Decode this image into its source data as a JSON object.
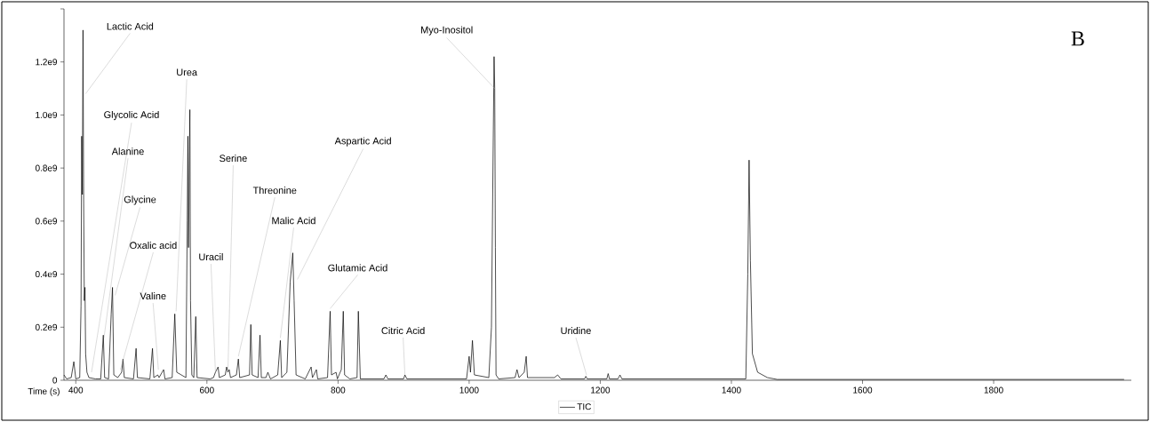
{
  "chart_data": {
    "type": "line",
    "xlabel": "Time (s)",
    "legend": "bottom",
    "xlim": [
      382,
      2010
    ],
    "ylim": [
      0,
      1400000000.0
    ],
    "xticks": [
      400,
      600,
      800,
      1000,
      1200,
      1400,
      1600,
      1800
    ],
    "yticks": [
      0,
      {
        "value": 200000000.0,
        "label": "0.2e9"
      },
      {
        "value": 400000000.0,
        "label": "0.4e9"
      },
      {
        "value": 600000000.0,
        "label": "0.6e9"
      },
      {
        "value": 800000000.0,
        "label": "0.8e9"
      },
      {
        "value": 1000000000.0,
        "label": "1.0e9"
      },
      {
        "value": 1200000000.0,
        "label": "1.2e9"
      },
      {
        "value": 1400000000.0,
        "label": null
      }
    ],
    "series": [
      {
        "name": "TIC",
        "color": "#000000",
        "x": [
          382,
          386,
          393,
          397,
          400,
          406,
          408,
          409,
          410,
          411,
          412,
          413,
          414,
          415,
          417,
          420,
          430,
          438,
          442,
          444,
          450,
          454,
          456,
          458,
          464,
          470,
          472,
          474,
          488,
          492,
          494,
          513,
          517,
          519,
          525,
          527,
          534,
          536,
          547,
          551,
          554,
          568,
          570,
          571,
          572,
          574,
          575,
          577,
          580,
          583,
          585,
          605,
          610,
          613,
          617,
          619,
          628,
          630,
          632,
          634,
          636,
          645,
          648,
          650,
          665,
          667,
          669,
          678,
          681,
          683,
          690,
          693,
          697,
          708,
          712,
          714,
          722,
          727,
          731,
          733,
          736,
          750,
          759,
          761,
          767,
          769,
          784,
          788,
          790,
          797,
          799,
          805,
          808,
          810,
          818,
          829,
          831,
          834,
          870,
          873,
          876,
          900,
          902,
          905,
          996,
          1000,
          1002,
          1005,
          1008,
          1030,
          1034,
          1036,
          1038,
          1039,
          1040,
          1041,
          1045,
          1070,
          1073,
          1076,
          1084,
          1087,
          1089,
          1130,
          1135,
          1140,
          1176,
          1178,
          1180,
          1210,
          1212,
          1214,
          1227,
          1230,
          1233,
          1422,
          1425,
          1427,
          1429,
          1432,
          1440,
          1455,
          1470,
          1999
        ],
        "values": [
          20000000.0,
          5000000.0,
          10000000.0,
          70000000.0,
          5000000.0,
          10000000.0,
          280000000.0,
          920000000.0,
          700000000.0,
          1320000000.0,
          680000000.0,
          300000000.0,
          350000000.0,
          100000000.0,
          30000000.0,
          10000000.0,
          5000000.0,
          5000000.0,
          170000000.0,
          10000000.0,
          5000000.0,
          250000000.0,
          350000000.0,
          20000000.0,
          10000000.0,
          30000000.0,
          80000000.0,
          10000000.0,
          5000000.0,
          120000000.0,
          10000000.0,
          5000000.0,
          120000000.0,
          10000000.0,
          20000000.0,
          10000000.0,
          40000000.0,
          5000000.0,
          10000000.0,
          250000000.0,
          30000000.0,
          10000000.0,
          600000000.0,
          920000000.0,
          500000000.0,
          1020000000.0,
          300000000.0,
          20000000.0,
          10000000.0,
          240000000.0,
          10000000.0,
          5000000.0,
          10000000.0,
          30000000.0,
          50000000.0,
          10000000.0,
          20000000.0,
          50000000.0,
          30000000.0,
          40000000.0,
          10000000.0,
          20000000.0,
          80000000.0,
          10000000.0,
          20000000.0,
          210000000.0,
          20000000.0,
          10000000.0,
          170000000.0,
          10000000.0,
          10000000.0,
          30000000.0,
          5000000.0,
          20000000.0,
          150000000.0,
          10000000.0,
          30000000.0,
          370000000.0,
          480000000.0,
          300000000.0,
          20000000.0,
          5000000.0,
          50000000.0,
          10000000.0,
          40000000.0,
          5000000.0,
          10000000.0,
          260000000.0,
          20000000.0,
          30000000.0,
          5000000.0,
          40000000.0,
          260000000.0,
          20000000.0,
          5000000.0,
          10000000.0,
          260000000.0,
          5000000.0,
          5000000.0,
          20000000.0,
          5000000.0,
          5000000.0,
          20000000.0,
          5000000.0,
          5000000.0,
          90000000.0,
          30000000.0,
          150000000.0,
          20000000.0,
          10000000.0,
          200000000.0,
          720000000.0,
          1220000000.0,
          1100000000.0,
          500000000.0,
          20000000.0,
          5000000.0,
          10000000.0,
          40000000.0,
          10000000.0,
          30000000.0,
          90000000.0,
          10000000.0,
          10000000.0,
          20000000.0,
          5000000.0,
          5000000.0,
          15000000.0,
          5000000.0,
          5000000.0,
          25000000.0,
          5000000.0,
          5000000.0,
          20000000.0,
          5000000.0,
          5000000.0,
          400000000.0,
          830000000.0,
          450000000.0,
          100000000.0,
          30000000.0,
          10000000.0,
          3000000.0,
          3000000.0
        ]
      }
    ],
    "annotations": [
      {
        "text": "Lactic Acid",
        "x": 415,
        "y": 1080000000.0
      },
      {
        "text": "Glycolic Acid",
        "x": 424,
        "y": 30000000.0
      },
      {
        "text": "Alanine",
        "x": 443,
        "y": 160000000.0
      },
      {
        "text": "Glycine",
        "x": 460,
        "y": 320000000.0
      },
      {
        "text": "Oxalic acid",
        "x": 468,
        "y": 40000000.0
      },
      {
        "text": "Valine",
        "x": 526,
        "y": 40000000.0
      },
      {
        "text": "Urea",
        "x": 553,
        "y": 260000000.0
      },
      {
        "text": "Uracil",
        "x": 613,
        "y": 30000000.0
      },
      {
        "text": "Serine",
        "x": 632,
        "y": 30000000.0
      },
      {
        "text": "Threonine",
        "x": 648,
        "y": 90000000.0
      },
      {
        "text": "Malic Acid",
        "x": 712,
        "y": 160000000.0
      },
      {
        "text": "Aspartic Acid",
        "x": 738,
        "y": 380000000.0
      },
      {
        "text": "Glutamic Acid",
        "x": 788,
        "y": 270000000.0
      },
      {
        "text": "Citric Acid",
        "x": 902,
        "y": 20000000.0
      },
      {
        "text": "Myo-Inositol",
        "x": 1039,
        "y": 1100000000.0
      },
      {
        "text": "Uridine",
        "x": 1179,
        "y": 20000000.0
      },
      "B"
    ]
  }
}
